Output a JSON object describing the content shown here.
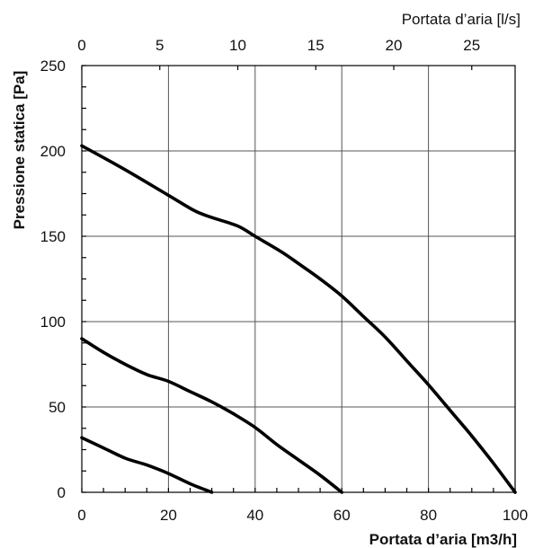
{
  "chart_data": {
    "type": "line",
    "title": "",
    "xlabel": "Portata d’aria [m3/h]",
    "ylabel": "Pressione statica [Pa]",
    "x2label": "Portata d’aria [l/s]",
    "xlim": [
      0,
      100
    ],
    "ylim": [
      0,
      250
    ],
    "x2lim": [
      0,
      27.78
    ],
    "x_ticks": [
      0,
      20,
      40,
      60,
      80,
      100
    ],
    "y_ticks": [
      0,
      50,
      100,
      150,
      200,
      250
    ],
    "x2_ticks": [
      0,
      5,
      10,
      15,
      20,
      25
    ],
    "grid": true,
    "series": [
      {
        "x": [
          0,
          10,
          20,
          26,
          30,
          36,
          40,
          46,
          50,
          55,
          60,
          65,
          70,
          75,
          80,
          85,
          90,
          95,
          100
        ],
        "y": [
          203,
          189,
          174,
          165,
          161,
          156,
          150,
          141,
          134,
          125,
          115,
          103,
          91,
          77,
          63,
          48,
          33,
          17,
          0
        ]
      },
      {
        "x": [
          0,
          5,
          10,
          15,
          20,
          25,
          30,
          35,
          40,
          45,
          50,
          55,
          60
        ],
        "y": [
          90,
          82,
          75,
          69,
          65,
          59,
          53,
          46,
          38,
          28,
          19,
          10,
          0
        ]
      },
      {
        "x": [
          0,
          5,
          10,
          15,
          20,
          25,
          30
        ],
        "y": [
          32,
          26,
          20,
          16,
          11,
          5,
          0
        ]
      }
    ]
  }
}
